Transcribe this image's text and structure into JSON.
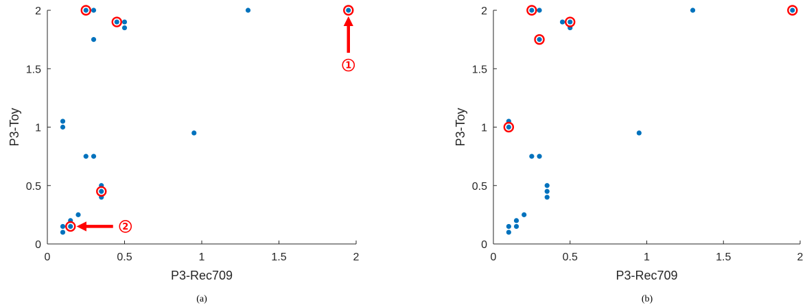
{
  "colors": {
    "points": "#0072BD",
    "highlight": "#ff0000",
    "axis": "#262626"
  },
  "chart_data": [
    {
      "type": "scatter",
      "caption": "(a)",
      "xlabel": "P3-Rec709",
      "ylabel": "P3-Toy",
      "xlim": [
        0,
        2
      ],
      "ylim": [
        0,
        2
      ],
      "xticks": [
        0,
        0.5,
        1,
        1.5,
        2
      ],
      "yticks": [
        0,
        0.5,
        1,
        1.5,
        2
      ],
      "grid": false,
      "points": [
        [
          0.1,
          0.1
        ],
        [
          0.1,
          0.15
        ],
        [
          0.15,
          0.15
        ],
        [
          0.15,
          0.2
        ],
        [
          0.2,
          0.25
        ],
        [
          0.1,
          1.0
        ],
        [
          0.1,
          1.05
        ],
        [
          0.25,
          0.75
        ],
        [
          0.3,
          0.75
        ],
        [
          0.35,
          0.4
        ],
        [
          0.35,
          0.45
        ],
        [
          0.35,
          0.5
        ],
        [
          0.25,
          2.0
        ],
        [
          0.3,
          2.0
        ],
        [
          0.3,
          1.75
        ],
        [
          0.45,
          1.9
        ],
        [
          0.5,
          1.9
        ],
        [
          0.5,
          1.85
        ],
        [
          0.95,
          0.95
        ],
        [
          1.3,
          2.0
        ],
        [
          1.95,
          2.0
        ]
      ],
      "highlighted": [
        [
          0.25,
          2.0
        ],
        [
          0.45,
          1.9
        ],
        [
          1.95,
          2.0
        ],
        [
          0.35,
          0.45
        ],
        [
          0.15,
          0.15
        ]
      ],
      "annotations": [
        {
          "label": "①",
          "target": [
            1.95,
            2.0
          ],
          "direction": "up"
        },
        {
          "label": "②",
          "target": [
            0.15,
            0.15
          ],
          "direction": "left"
        }
      ]
    },
    {
      "type": "scatter",
      "caption": "(b)",
      "xlabel": "P3-Rec709",
      "ylabel": "P3-Toy",
      "xlim": [
        0,
        2
      ],
      "ylim": [
        0,
        2
      ],
      "xticks": [
        0,
        0.5,
        1,
        1.5,
        2
      ],
      "yticks": [
        0,
        0.5,
        1,
        1.5,
        2
      ],
      "grid": false,
      "points": [
        [
          0.1,
          0.1
        ],
        [
          0.1,
          0.15
        ],
        [
          0.15,
          0.15
        ],
        [
          0.15,
          0.2
        ],
        [
          0.2,
          0.25
        ],
        [
          0.1,
          1.0
        ],
        [
          0.1,
          1.05
        ],
        [
          0.25,
          0.75
        ],
        [
          0.3,
          0.75
        ],
        [
          0.35,
          0.4
        ],
        [
          0.35,
          0.45
        ],
        [
          0.35,
          0.5
        ],
        [
          0.25,
          2.0
        ],
        [
          0.3,
          2.0
        ],
        [
          0.3,
          1.75
        ],
        [
          0.45,
          1.9
        ],
        [
          0.5,
          1.9
        ],
        [
          0.5,
          1.85
        ],
        [
          0.95,
          0.95
        ],
        [
          1.3,
          2.0
        ],
        [
          1.95,
          2.0
        ]
      ],
      "highlighted": [
        [
          0.25,
          2.0
        ],
        [
          0.5,
          1.9
        ],
        [
          0.3,
          1.75
        ],
        [
          0.1,
          1.0
        ],
        [
          1.95,
          2.0
        ]
      ],
      "annotations": []
    }
  ]
}
